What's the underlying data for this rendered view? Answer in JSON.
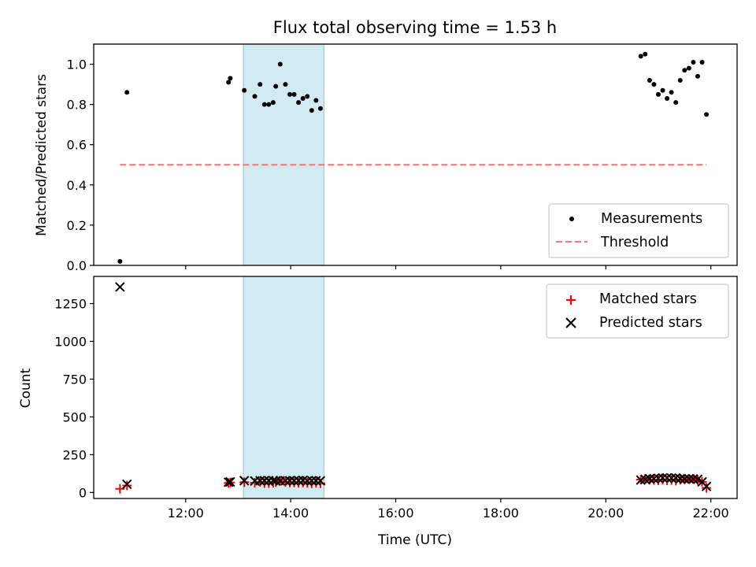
{
  "chart_data": [
    {
      "type": "scatter",
      "title": "Flux total observing time = 1.53 h",
      "xlabel": "",
      "ylabel": "Matched/Predicted stars",
      "xlim": [
        "10:15",
        "22:30"
      ],
      "ylim": [
        0,
        1.1
      ],
      "yticks": [
        "0.0",
        "0.2",
        "0.4",
        "0.6",
        "0.8",
        "1.0"
      ],
      "grid": false,
      "legend_position": "lower-right",
      "observing_window": {
        "start": "13:06",
        "end": "14:38"
      },
      "window_color": "#add8e6",
      "series": [
        {
          "name": "Measurements",
          "marker": "dot",
          "color": "#000000",
          "x": [
            "10:45",
            "10:53",
            "12:49",
            "12:51",
            "13:07",
            "13:19",
            "13:25",
            "13:30",
            "13:35",
            "13:40",
            "13:43",
            "13:48",
            "13:54",
            "13:59",
            "14:04",
            "14:09",
            "14:14",
            "14:19",
            "14:24",
            "14:29",
            "14:34",
            "20:40",
            "20:45",
            "20:50",
            "20:55",
            "21:00",
            "21:05",
            "21:10",
            "21:15",
            "21:20",
            "21:25",
            "21:30",
            "21:35",
            "21:40",
            "21:45",
            "21:50",
            "21:55"
          ],
          "y": [
            0.02,
            0.86,
            0.91,
            0.93,
            0.87,
            0.84,
            0.9,
            0.8,
            0.8,
            0.81,
            0.89,
            1.0,
            0.9,
            0.85,
            0.85,
            0.81,
            0.83,
            0.84,
            0.77,
            0.82,
            0.78,
            1.04,
            1.05,
            0.92,
            0.9,
            0.85,
            0.87,
            0.83,
            0.86,
            0.81,
            0.92,
            0.97,
            0.98,
            1.01,
            0.94,
            1.01,
            0.75
          ]
        },
        {
          "name": "Threshold",
          "line": "dashed",
          "color": "#f08080",
          "x": [
            "10:45",
            "21:55"
          ],
          "y": [
            0.5,
            0.5
          ]
        }
      ]
    },
    {
      "type": "scatter",
      "xlabel": "Time (UTC)",
      "ylabel": "Count",
      "xlim": [
        "10:15",
        "22:30"
      ],
      "ylim": [
        -40,
        1430
      ],
      "xticks": [
        "12:00",
        "14:00",
        "16:00",
        "18:00",
        "20:00",
        "22:00"
      ],
      "yticks": [
        "0",
        "250",
        "500",
        "750",
        "1000",
        "1250"
      ],
      "grid": false,
      "legend_position": "upper-right",
      "observing_window": {
        "start": "13:06",
        "end": "14:38"
      },
      "window_color": "#add8e6",
      "series": [
        {
          "name": "Matched stars",
          "marker": "plus",
          "color": "#ff0000",
          "x": [
            "10:45",
            "10:53",
            "12:49",
            "12:51",
            "13:07",
            "13:19",
            "13:25",
            "13:30",
            "13:35",
            "13:40",
            "13:43",
            "13:48",
            "13:54",
            "13:59",
            "14:04",
            "14:09",
            "14:14",
            "14:19",
            "14:24",
            "14:29",
            "14:34",
            "20:40",
            "20:45",
            "20:50",
            "20:55",
            "21:00",
            "21:05",
            "21:10",
            "21:15",
            "21:20",
            "21:25",
            "21:30",
            "21:35",
            "21:40",
            "21:45",
            "21:50",
            "21:55"
          ],
          "y": [
            24,
            46,
            62,
            66,
            68,
            64,
            70,
            62,
            62,
            64,
            68,
            77,
            70,
            66,
            66,
            64,
            66,
            64,
            60,
            64,
            60,
            85,
            90,
            84,
            82,
            80,
            84,
            80,
            82,
            78,
            84,
            86,
            88,
            90,
            82,
            70,
            30
          ]
        },
        {
          "name": "Predicted stars",
          "marker": "x",
          "color": "#000000",
          "x": [
            "10:45",
            "10:53",
            "12:49",
            "12:51",
            "13:07",
            "13:19",
            "13:25",
            "13:30",
            "13:35",
            "13:40",
            "13:43",
            "13:48",
            "13:54",
            "13:59",
            "14:04",
            "14:09",
            "14:14",
            "14:19",
            "14:24",
            "14:29",
            "14:34",
            "20:40",
            "20:45",
            "20:50",
            "20:55",
            "21:00",
            "21:05",
            "21:10",
            "21:15",
            "21:20",
            "21:25",
            "21:30",
            "21:35",
            "21:40",
            "21:45",
            "21:50",
            "21:55"
          ],
          "y": [
            1360,
            54,
            68,
            70,
            78,
            76,
            78,
            78,
            78,
            79,
            76,
            77,
            78,
            78,
            77,
            79,
            80,
            76,
            78,
            78,
            77,
            82,
            86,
            91,
            91,
            94,
            96,
            96,
            95,
            96,
            91,
            89,
            90,
            89,
            87,
            70,
            40
          ]
        }
      ]
    }
  ]
}
